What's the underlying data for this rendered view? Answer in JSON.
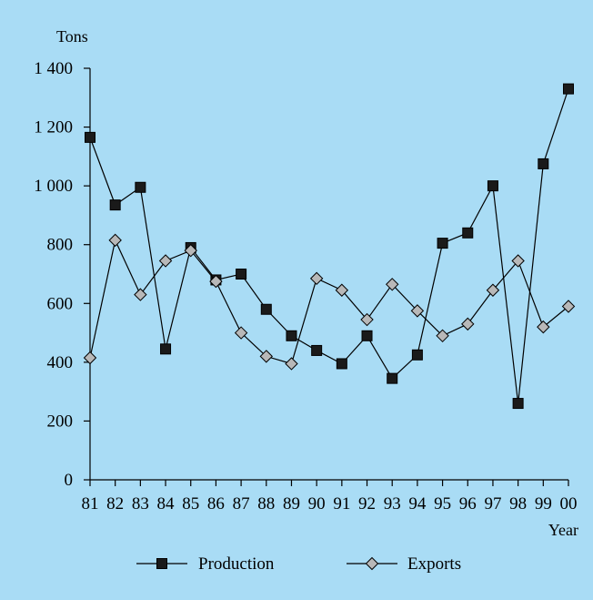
{
  "chart_data": {
    "type": "line",
    "ylabel": "Tons",
    "xlabel": "Year",
    "categories": [
      "81",
      "82",
      "83",
      "84",
      "85",
      "86",
      "87",
      "88",
      "89",
      "90",
      "91",
      "92",
      "93",
      "94",
      "95",
      "96",
      "97",
      "98",
      "99",
      "00"
    ],
    "ylim": [
      0,
      1400
    ],
    "yticks": [
      0,
      200,
      400,
      600,
      800,
      1000,
      1200,
      1400
    ],
    "ytick_labels": [
      "0",
      "200",
      "400",
      "600",
      "800",
      "1 000",
      "1 200",
      "1 400"
    ],
    "grid": false,
    "legend_position": "bottom",
    "series": [
      {
        "name": "Production",
        "marker": "square",
        "color": "#1a1a1a",
        "values": [
          1165,
          935,
          995,
          445,
          790,
          680,
          700,
          580,
          490,
          440,
          395,
          490,
          345,
          425,
          805,
          840,
          1000,
          260,
          1075,
          1330
        ]
      },
      {
        "name": "Exports",
        "marker": "diamond",
        "color": "#b8b8b8",
        "values": [
          415,
          815,
          630,
          745,
          780,
          675,
          500,
          420,
          395,
          685,
          645,
          545,
          665,
          575,
          490,
          530,
          645,
          745,
          520,
          590
        ]
      }
    ]
  }
}
